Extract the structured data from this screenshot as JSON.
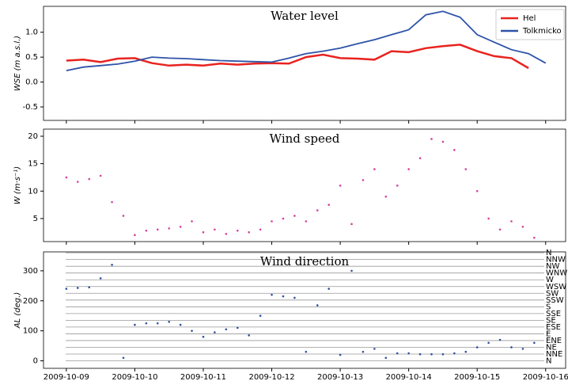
{
  "chart_data": [
    {
      "type": "line",
      "title": "Water level",
      "ylabel": "WSE (m a.s.l.)",
      "x": [
        "2009-10-09T00:00",
        "2009-10-09T06:00",
        "2009-10-09T12:00",
        "2009-10-09T18:00",
        "2009-10-10T00:00",
        "2009-10-10T06:00",
        "2009-10-10T12:00",
        "2009-10-10T18:00",
        "2009-10-11T00:00",
        "2009-10-11T06:00",
        "2009-10-11T12:00",
        "2009-10-11T18:00",
        "2009-10-12T00:00",
        "2009-10-12T06:00",
        "2009-10-12T12:00",
        "2009-10-12T18:00",
        "2009-10-13T00:00",
        "2009-10-13T06:00",
        "2009-10-13T12:00",
        "2009-10-13T18:00",
        "2009-10-14T00:00",
        "2009-10-14T06:00",
        "2009-10-14T12:00",
        "2009-10-14T18:00",
        "2009-10-15T00:00",
        "2009-10-15T06:00",
        "2009-10-15T12:00",
        "2009-10-15T18:00",
        "2009-10-16T00:00"
      ],
      "series": [
        {
          "name": "Hel",
          "color": "#e8231f",
          "values": [
            0.43,
            0.45,
            0.4,
            0.47,
            0.48,
            0.38,
            0.33,
            0.35,
            0.33,
            0.37,
            0.35,
            0.37,
            0.38,
            0.37,
            0.5,
            0.55,
            0.48,
            0.47,
            0.45,
            0.62,
            0.6,
            0.68,
            0.72,
            0.75,
            0.62,
            0.52,
            0.48,
            0.28,
            null
          ]
        },
        {
          "name": "Tolkmicko",
          "color": "#2e53a8",
          "values": [
            0.23,
            0.3,
            0.33,
            0.36,
            0.42,
            0.5,
            0.48,
            0.47,
            0.45,
            0.43,
            0.42,
            0.41,
            0.4,
            0.48,
            0.57,
            0.62,
            0.68,
            0.77,
            0.85,
            0.95,
            1.05,
            1.35,
            1.42,
            1.3,
            0.95,
            0.8,
            0.65,
            0.57,
            0.38
          ]
        }
      ],
      "xlim": [
        "2009-10-08T16:00",
        "2009-10-16T07:00"
      ],
      "ylim": [
        -0.77,
        1.52
      ],
      "yticks": [
        -0.5,
        {
          "value": 0,
          "label": "0.0"
        },
        0.5,
        {
          "value": 1,
          "label": "1.0"
        }
      ],
      "legend": "upper right"
    },
    {
      "type": "scatter",
      "title": "Wind speed",
      "ylabel": "W (m·s⁻¹)",
      "color": "#d6409f",
      "x": [
        "2009-10-09T00:00",
        "2009-10-09T04:00",
        "2009-10-09T08:00",
        "2009-10-09T12:00",
        "2009-10-09T16:00",
        "2009-10-09T20:00",
        "2009-10-10T00:00",
        "2009-10-10T04:00",
        "2009-10-10T08:00",
        "2009-10-10T12:00",
        "2009-10-10T16:00",
        "2009-10-10T20:00",
        "2009-10-11T00:00",
        "2009-10-11T04:00",
        "2009-10-11T08:00",
        "2009-10-11T12:00",
        "2009-10-11T16:00",
        "2009-10-11T20:00",
        "2009-10-12T00:00",
        "2009-10-12T04:00",
        "2009-10-12T08:00",
        "2009-10-12T12:00",
        "2009-10-12T16:00",
        "2009-10-12T20:00",
        "2009-10-13T00:00",
        "2009-10-13T04:00",
        "2009-10-13T08:00",
        "2009-10-13T12:00",
        "2009-10-13T16:00",
        "2009-10-13T20:00",
        "2009-10-14T00:00",
        "2009-10-14T04:00",
        "2009-10-14T08:00",
        "2009-10-14T12:00",
        "2009-10-14T16:00",
        "2009-10-14T20:00",
        "2009-10-15T00:00",
        "2009-10-15T04:00",
        "2009-10-15T08:00",
        "2009-10-15T12:00",
        "2009-10-15T16:00",
        "2009-10-15T20:00"
      ],
      "values": [
        12.5,
        11.7,
        12.2,
        12.8,
        8.0,
        5.5,
        2.0,
        2.8,
        3.0,
        3.2,
        3.5,
        4.5,
        2.5,
        3.0,
        2.2,
        2.8,
        2.5,
        3.0,
        4.5,
        5.0,
        5.5,
        4.5,
        6.5,
        7.5,
        11,
        4,
        12,
        14,
        9,
        11,
        14,
        16,
        19.5,
        19,
        17.5,
        14,
        10,
        5,
        3,
        4.5,
        3.5,
        1.5
      ],
      "xlim": [
        "2009-10-08T16:00",
        "2009-10-16T07:00"
      ],
      "ylim": [
        0.8,
        21.3
      ],
      "yticks": [
        5,
        10,
        15,
        20
      ]
    },
    {
      "type": "scatter",
      "title": "Wind direction",
      "ylabel": "AL (deg.)",
      "color": "#3050a0",
      "x": [
        "2009-10-09T00:00",
        "2009-10-09T04:00",
        "2009-10-09T08:00",
        "2009-10-09T12:00",
        "2009-10-09T16:00",
        "2009-10-09T20:00",
        "2009-10-10T00:00",
        "2009-10-10T04:00",
        "2009-10-10T08:00",
        "2009-10-10T12:00",
        "2009-10-10T16:00",
        "2009-10-10T20:00",
        "2009-10-11T00:00",
        "2009-10-11T04:00",
        "2009-10-11T08:00",
        "2009-10-11T12:00",
        "2009-10-11T16:00",
        "2009-10-11T20:00",
        "2009-10-12T00:00",
        "2009-10-12T04:00",
        "2009-10-12T08:00",
        "2009-10-12T12:00",
        "2009-10-12T16:00",
        "2009-10-12T20:00",
        "2009-10-13T00:00",
        "2009-10-13T04:00",
        "2009-10-13T08:00",
        "2009-10-13T12:00",
        "2009-10-13T16:00",
        "2009-10-13T20:00",
        "2009-10-14T00:00",
        "2009-10-14T04:00",
        "2009-10-14T08:00",
        "2009-10-14T12:00",
        "2009-10-14T16:00",
        "2009-10-14T20:00",
        "2009-10-15T00:00",
        "2009-10-15T04:00",
        "2009-10-15T08:00",
        "2009-10-15T12:00",
        "2009-10-15T16:00",
        "2009-10-15T20:00"
      ],
      "values": [
        240,
        243,
        245,
        275,
        320,
        10,
        120,
        125,
        125,
        130,
        120,
        100,
        80,
        95,
        105,
        110,
        85,
        150,
        220,
        215,
        210,
        30,
        185,
        240,
        20,
        300,
        30,
        40,
        10,
        25,
        25,
        22,
        22,
        22,
        25,
        30,
        45,
        60,
        70,
        45,
        40,
        60
      ],
      "xlim": [
        "2009-10-08T16:00",
        "2009-10-16T07:00"
      ],
      "xticks": [
        "2009-10-09",
        "2009-10-10",
        "2009-10-11",
        "2009-10-12",
        "2009-10-13",
        "2009-10-14",
        "2009-10-15",
        "2009-10-16"
      ],
      "ylim": [
        -25,
        363
      ],
      "yticks": [
        0,
        100,
        200,
        300
      ],
      "y2lim": [
        -25,
        363
      ],
      "y2ticks": [
        {
          "value": 0,
          "label": "N"
        },
        {
          "value": 22.5,
          "label": "NNE"
        },
        {
          "value": 45,
          "label": "NE"
        },
        {
          "value": 67.5,
          "label": "ENE"
        },
        {
          "value": 90,
          "label": "E"
        },
        {
          "value": 112.5,
          "label": "ESE"
        },
        {
          "value": 135,
          "label": "SE"
        },
        {
          "value": 157.5,
          "label": "SSE"
        },
        {
          "value": 180,
          "label": "S"
        },
        {
          "value": 202.5,
          "label": "SSW"
        },
        {
          "value": 225,
          "label": "SW"
        },
        {
          "value": 247.5,
          "label": "WSW"
        },
        {
          "value": 270,
          "label": "W"
        },
        {
          "value": 292.5,
          "label": "WNW"
        },
        {
          "value": 315,
          "label": "NW"
        },
        {
          "value": 337.5,
          "label": "NNW"
        },
        {
          "value": 360,
          "label": "N"
        }
      ],
      "grid": true
    }
  ]
}
